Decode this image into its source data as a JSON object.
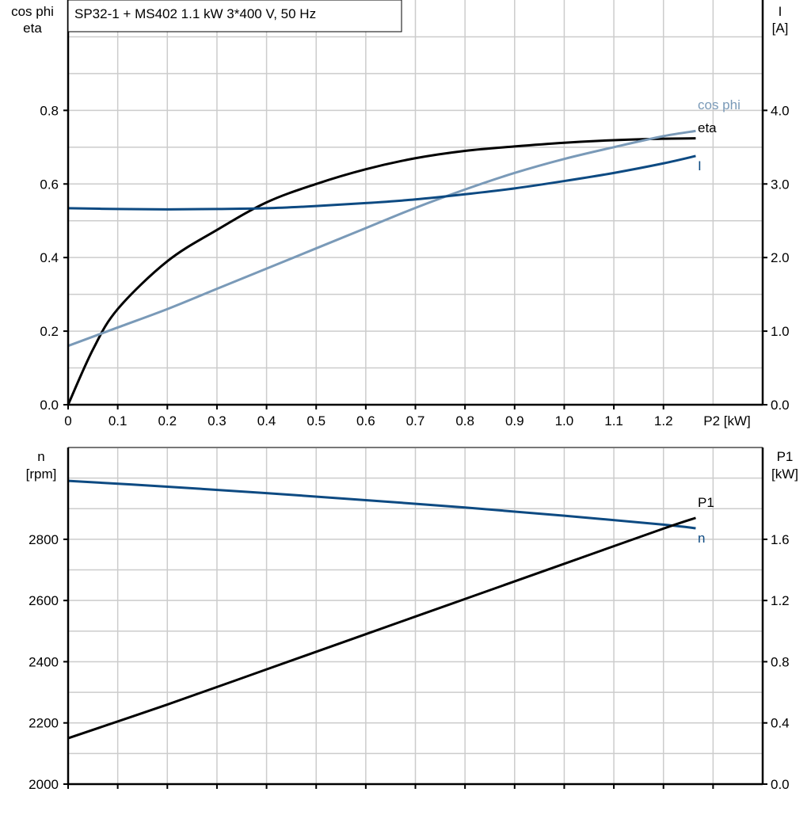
{
  "title": "SP32-1 + MS402   1.1 kW   3*400 V, 50 Hz",
  "colors": {
    "eta": "#000000",
    "cos_phi": "#7a9ab8",
    "I": "#0d4a82",
    "n": "#0d4a82",
    "P1": "#000000",
    "grid": "#cccccc"
  },
  "chart_data": [
    {
      "type": "line",
      "xlabel": "P2 [kW]",
      "ylabel_left": [
        "cos phi",
        "eta"
      ],
      "ylabel_right": [
        "I",
        "[A]"
      ],
      "xlim": [
        0,
        1.4
      ],
      "ylim_left": [
        0,
        1.1
      ],
      "ylim_right": [
        0,
        5.5
      ],
      "x_ticks": [
        "0",
        "0.1",
        "0.2",
        "0.3",
        "0.4",
        "0.5",
        "0.6",
        "0.7",
        "0.8",
        "0.9",
        "1.0",
        "1.1",
        "1.2"
      ],
      "y_ticks_left": [
        "0.0",
        "0.2",
        "0.4",
        "0.6",
        "0.8"
      ],
      "y_ticks_right": [
        "0.0",
        "1.0",
        "2.0",
        "3.0",
        "4.0"
      ],
      "grid": true,
      "series": [
        {
          "name": "eta",
          "axis": "left",
          "x": [
            0,
            0.05,
            0.1,
            0.2,
            0.3,
            0.4,
            0.5,
            0.6,
            0.7,
            0.8,
            0.9,
            1.0,
            1.1,
            1.2,
            1.265
          ],
          "y": [
            0,
            0.15,
            0.26,
            0.39,
            0.475,
            0.55,
            0.6,
            0.64,
            0.67,
            0.69,
            0.702,
            0.712,
            0.719,
            0.723,
            0.724
          ]
        },
        {
          "name": "cos phi",
          "axis": "left",
          "x": [
            0,
            0.1,
            0.2,
            0.3,
            0.4,
            0.5,
            0.6,
            0.7,
            0.8,
            0.9,
            1.0,
            1.1,
            1.2,
            1.265
          ],
          "y": [
            0.16,
            0.21,
            0.26,
            0.315,
            0.37,
            0.425,
            0.48,
            0.535,
            0.585,
            0.63,
            0.668,
            0.7,
            0.73,
            0.744
          ]
        },
        {
          "name": "I",
          "axis": "right",
          "x": [
            0,
            0.1,
            0.2,
            0.3,
            0.4,
            0.5,
            0.6,
            0.7,
            0.8,
            0.9,
            1.0,
            1.1,
            1.2,
            1.265
          ],
          "y": [
            2.67,
            2.66,
            2.655,
            2.66,
            2.67,
            2.7,
            2.74,
            2.79,
            2.86,
            2.94,
            3.04,
            3.15,
            3.28,
            3.38
          ]
        }
      ]
    },
    {
      "type": "line",
      "ylabel_left": [
        "n",
        "[rpm]"
      ],
      "ylabel_right": [
        "P1",
        "[kW]"
      ],
      "xlim": [
        0,
        1.4
      ],
      "ylim_left": [
        2000,
        3100
      ],
      "ylim_right": [
        0,
        2.2
      ],
      "y_ticks_left": [
        "2000",
        "2200",
        "2400",
        "2600",
        "2800"
      ],
      "y_ticks_right": [
        "0.0",
        "0.4",
        "0.8",
        "1.2",
        "1.6"
      ],
      "grid": true,
      "series": [
        {
          "name": "n",
          "axis": "left",
          "x": [
            0,
            0.2,
            0.4,
            0.6,
            0.8,
            1.0,
            1.2,
            1.265
          ],
          "y": [
            2991,
            2972,
            2951,
            2928,
            2904,
            2877,
            2848,
            2836
          ]
        },
        {
          "name": "P1",
          "axis": "right",
          "x": [
            0,
            0.2,
            0.4,
            0.6,
            0.8,
            1.0,
            1.2,
            1.265
          ],
          "y": [
            0.3,
            0.52,
            0.75,
            0.98,
            1.21,
            1.44,
            1.67,
            1.74
          ]
        }
      ]
    }
  ]
}
